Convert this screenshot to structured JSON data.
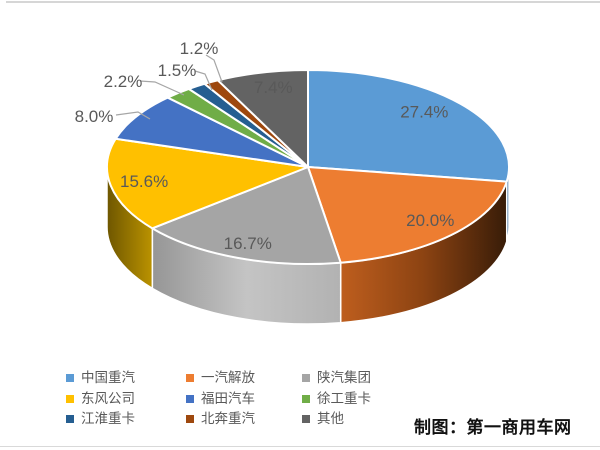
{
  "chart_data": {
    "type": "pie",
    "style": "3d-pie",
    "title": "",
    "legend_position": "bottom",
    "labels": [
      "中国重汽",
      "一汽解放",
      "陕汽集团",
      "东风公司",
      "福田汽车",
      "徐工重卡",
      "江淮重卡",
      "北奔重汽",
      "其他"
    ],
    "values": [
      27.4,
      20.0,
      16.7,
      15.6,
      8.0,
      2.2,
      1.5,
      1.2,
      7.4
    ],
    "value_labels": [
      "27.4%",
      "20.0%",
      "16.7%",
      "15.6%",
      "8.0%",
      "2.2%",
      "1.5%",
      "1.2%",
      "7.4%"
    ],
    "colors": [
      "#5B9BD5",
      "#ED7D31",
      "#A5A5A5",
      "#FFC000",
      "#4472C4",
      "#70AD47",
      "#255E91",
      "#9E480E",
      "#636363"
    ],
    "label_color": "#595959",
    "start_angle_deg": 0,
    "direction": "clockwise"
  },
  "credit": {
    "text": "制图：第一商用车网"
  }
}
